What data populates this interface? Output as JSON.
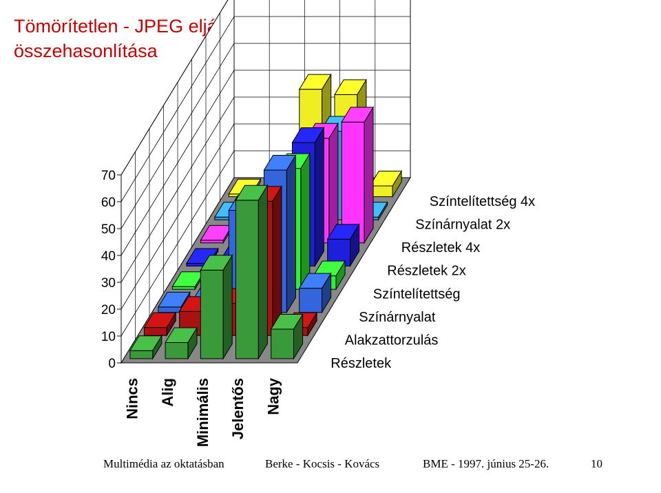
{
  "title": {
    "line1": "Tömörítetlen - JPEG eljárások",
    "line2": "összehasonlítása"
  },
  "chart_data": {
    "type": "bar",
    "title": "Tömörítetlen - JPEG eljárások összehasonlítása",
    "categories": [
      "Nincs",
      "Alig",
      "Minimális",
      "Jelentős",
      "Nagy"
    ],
    "ylim": [
      0,
      70
    ],
    "yticks": [
      0,
      10,
      20,
      30,
      40,
      50,
      60,
      70
    ],
    "grid": true,
    "series": [
      {
        "name": "Részletek",
        "color": "#3a9a3a",
        "values": [
          3,
          6,
          33,
          59,
          11
        ]
      },
      {
        "name": "Alakzattorzulás",
        "color": "#aa1111",
        "values": [
          3,
          9,
          12,
          50,
          3
        ]
      },
      {
        "name": "Színárnyalat",
        "color": "#3366dd",
        "values": [
          2,
          5,
          38,
          53,
          9
        ]
      },
      {
        "name": "Színtelítettség",
        "color": "#33ee33",
        "values": [
          1,
          2,
          16,
          45,
          5
        ]
      },
      {
        "name": "Részletek 2x",
        "color": "#1e1edd",
        "values": [
          1,
          3,
          10,
          46,
          10
        ]
      },
      {
        "name": "Részletek 4x",
        "color": "#ff33ff",
        "values": [
          1,
          3,
          24,
          39,
          45
        ]
      },
      {
        "name": "Színárnyalat 2x",
        "color": "#3399cc",
        "values": [
          1,
          3,
          5,
          33,
          1
        ]
      },
      {
        "name": "Színtelítettség 4x",
        "color": "#eeee22",
        "values": [
          1,
          1,
          40,
          38,
          4
        ]
      }
    ]
  },
  "footer": {
    "left": "Multimédia az oktatásban",
    "authors": "Berke - Kocsis - Kovács",
    "venue": "BME - 1997. június 25-26.",
    "page": "10"
  }
}
